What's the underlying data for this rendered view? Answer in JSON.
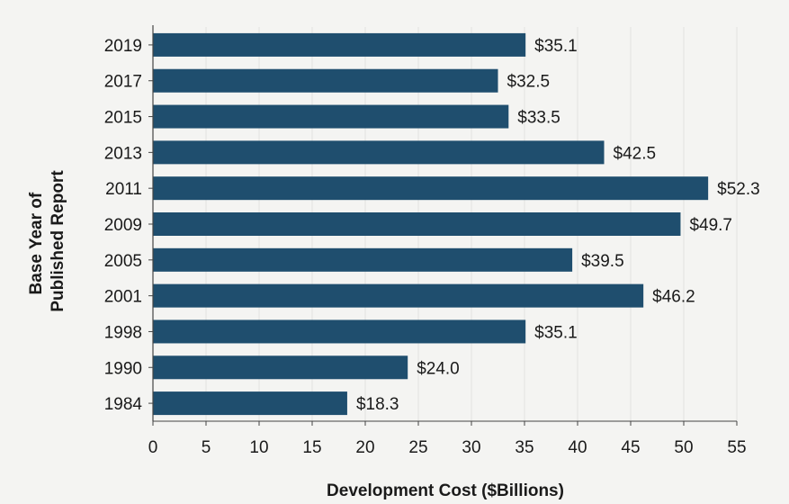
{
  "chart_data": {
    "type": "bar",
    "orientation": "horizontal",
    "categories": [
      "2019",
      "2017",
      "2015",
      "2013",
      "2011",
      "2009",
      "2005",
      "2001",
      "1998",
      "1990",
      "1984"
    ],
    "values": [
      35.1,
      32.5,
      33.5,
      42.5,
      52.3,
      49.7,
      39.5,
      46.2,
      35.1,
      24.0,
      18.3
    ],
    "value_labels": [
      "$35.1",
      "$32.5",
      "$33.5",
      "$42.5",
      "$52.3",
      "$49.7",
      "$39.5",
      "$46.2",
      "$35.1",
      "$24.0",
      "$18.3"
    ],
    "xlabel": "Development Cost ($Billions)",
    "ylabel_lines": [
      "Base Year of",
      "Published Report"
    ],
    "xlim": [
      0,
      55
    ],
    "xticks": [
      0,
      5,
      10,
      15,
      20,
      25,
      30,
      35,
      40,
      45,
      50,
      55
    ],
    "grid": true,
    "legend": "none",
    "bar_color": "#1f4e6e"
  }
}
